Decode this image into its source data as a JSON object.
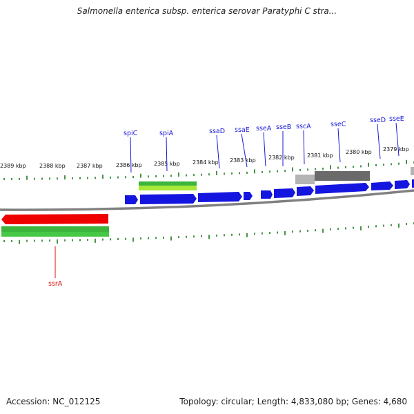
{
  "title": "Salmonella enterica subsp. enterica serovar Paratyphi C stra...",
  "accession_label": "Accession: NC_012125",
  "summary_label": "Topology: circular; Length: 4,833,080 bp; Genes: 4,680",
  "colors": {
    "backbone": "#808080",
    "tick": "#1a7a1a",
    "cds_forward": "#1515e0",
    "cds_reverse": "#ee0000",
    "gene_green": "#3cb53c",
    "gene_lime": "#a8e838",
    "gene_grey_light": "#b4b4b4",
    "gene_grey_dark": "#6a6a6a",
    "label_forward": "#1818d8",
    "label_reverse": "#dd1111"
  },
  "scale_labels": [
    "2389 kbp",
    "2388 kbp",
    "2387 kbp",
    "2386 kbp",
    "2385 kbp",
    "2384 kbp",
    "2383 kbp",
    "2382 kbp",
    "2381 kbp",
    "2380 kbp",
    "2379 kbp"
  ],
  "gene_labels_forward": [
    "spiC",
    "spiA",
    "ssaD",
    "ssaE",
    "sseA",
    "sseB",
    "sscA",
    "sseC",
    "sseD",
    "sseE"
  ],
  "gene_labels_reverse": [
    "ssrA"
  ]
}
